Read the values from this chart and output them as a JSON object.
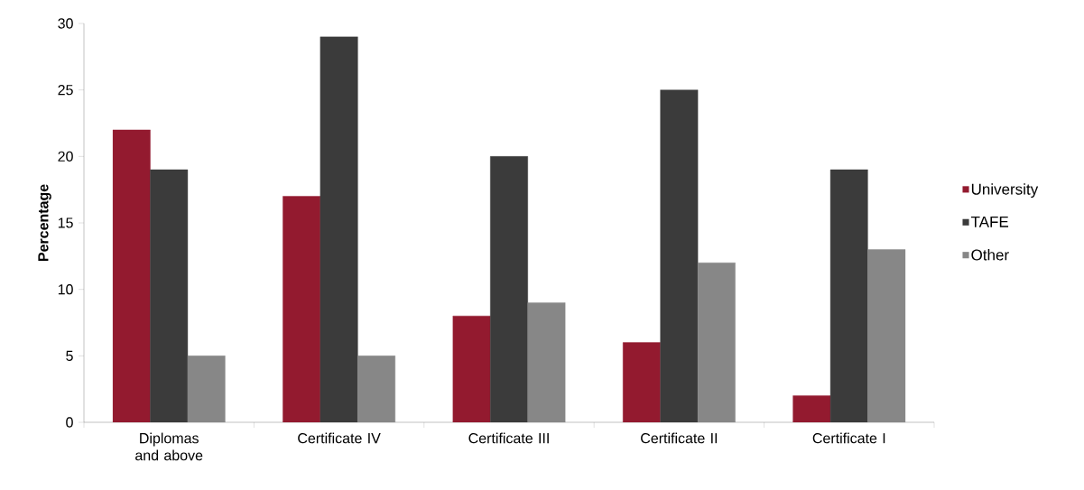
{
  "chart_data": {
    "type": "bar",
    "ylabel": "Percentage",
    "categories": [
      "Diplomas and above",
      "Certificate IV",
      "Certificate III",
      "Certificate II",
      "Certificate I"
    ],
    "series": [
      {
        "name": "University",
        "color": "#931a2f",
        "values": [
          22,
          17,
          8,
          6,
          2
        ]
      },
      {
        "name": "TAFE",
        "color": "#3b3b3b",
        "values": [
          19,
          29,
          20,
          25,
          19
        ]
      },
      {
        "name": "Other",
        "color": "#878787",
        "values": [
          5,
          5,
          9,
          12,
          13
        ]
      }
    ],
    "ylim": [
      0,
      30
    ],
    "yticks": [
      0,
      5,
      10,
      15,
      20,
      25,
      30
    ],
    "grid": false,
    "legend": "right"
  }
}
